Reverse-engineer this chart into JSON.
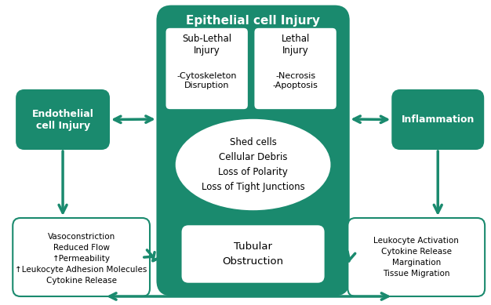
{
  "bg_color": "#ffffff",
  "green_dark": "#1a8a6e",
  "green_fill": "#1a8a6e",
  "white": "#ffffff",
  "text_dark": "#1a6e55",
  "box_edge": "#1a8a6e",
  "title": "Epithelial cell Injury",
  "sub_lethal_title": "Sub-Lethal\nInjury",
  "sub_lethal_body": "-Cytoskeleton\nDisruption",
  "lethal_title": "Lethal\nInjury",
  "lethal_body": "-Necrosis\n-Apoptosis",
  "oval_text": "Shed cells\nCellular Debris\nLoss of Polarity\nLoss of Tight Junctions",
  "tubular_text": "Tubular\nObstruction",
  "endothelial_text": "Endothelial\ncell Injury",
  "inflammation_text": "Inflammation",
  "vasoconstriction_text": "Vasoconstriction\nReduced Flow\n↑Permeability\n↑Leukocyte Adhesion Molecules\nCytokine Release",
  "leukocyte_text": "Leukocyte Activation\nCytokine Release\nMargination\nTissue Migration"
}
